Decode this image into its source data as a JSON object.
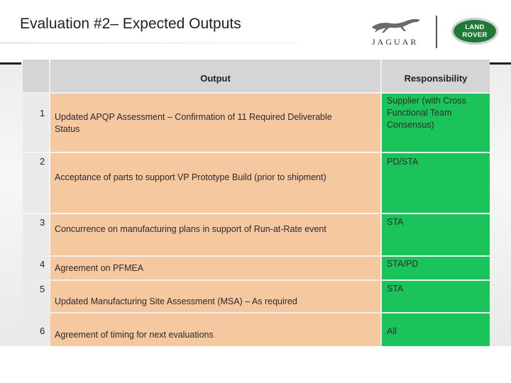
{
  "slide": {
    "title": "Evaluation #2– Expected Outputs"
  },
  "logos": {
    "jaguar_text": "JAGUAR",
    "land_rover_line1": "LAND",
    "land_rover_line2": "ROVER",
    "land_rover_color": "#1f7a35"
  },
  "table": {
    "headers": {
      "number": "",
      "output": "Output",
      "responsibility": "Responsibility"
    },
    "colors": {
      "header": "#d5d5d5",
      "number": "#eaeaea",
      "output": "#f6c8a0",
      "responsibility": "#1bc45a"
    },
    "rows": [
      {
        "number": "1",
        "output": "Updated APQP Assessment – Confirmation of 11 Required Deliverable Status",
        "responsibility": "Supplier (with Cross Functional Team Consensus)"
      },
      {
        "number": "2",
        "output": "Acceptance of parts to support VP Prototype Build (prior to shipment)",
        "responsibility": "PD/STA"
      },
      {
        "number": "3",
        "output": "Concurrence on manufacturing plans in support of Run-at-Rate event",
        "responsibility": "STA"
      },
      {
        "number": "4",
        "output": "Agreement on PFMEA",
        "responsibility": "STA/PD"
      },
      {
        "number": "5",
        "output": "Updated Manufacturing Site Assessment (MSA) – As required",
        "responsibility": "STA"
      },
      {
        "number": "6",
        "output": "Agreement of timing for next evaluations",
        "responsibility": "All"
      }
    ]
  }
}
